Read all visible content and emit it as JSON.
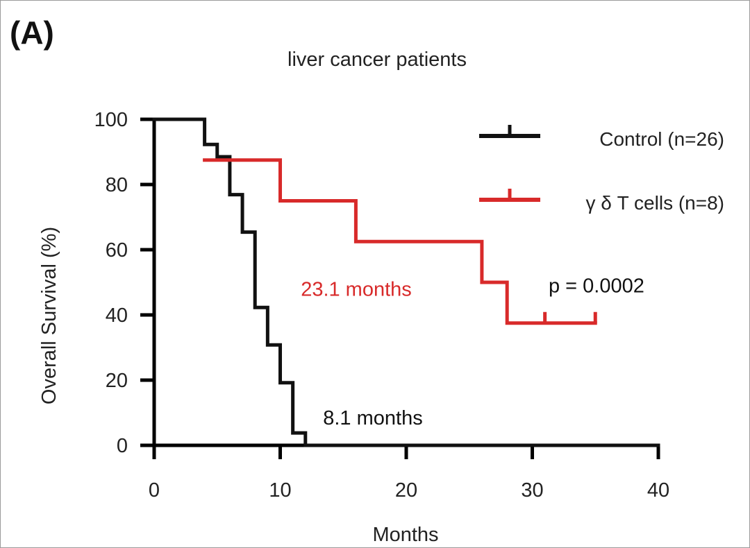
{
  "panel_label": "(A)",
  "chart_data": {
    "type": "line",
    "subtype": "kaplan-meier step",
    "title": "liver cancer patients",
    "xlabel": "Months",
    "ylabel": "Overall Survival (%)",
    "xlim": [
      0,
      40
    ],
    "ylim": [
      0,
      100
    ],
    "x_ticks": [
      0,
      10,
      20,
      30,
      40
    ],
    "y_ticks": [
      0,
      20,
      40,
      60,
      80,
      100
    ],
    "x_tick_labels": [
      "0",
      "10",
      "20",
      "30",
      "40"
    ],
    "y_tick_labels": [
      "0",
      "20",
      "40",
      "60",
      "80",
      "100"
    ],
    "grid": false,
    "legend_position": "top-right",
    "series": [
      {
        "name": "Control (n=26)",
        "color": "#111111",
        "steps": [
          [
            0,
            100
          ],
          [
            4,
            100
          ],
          [
            4,
            92.3
          ],
          [
            5,
            92.3
          ],
          [
            5,
            88.5
          ],
          [
            6,
            88.5
          ],
          [
            6,
            76.9
          ],
          [
            7,
            76.9
          ],
          [
            7,
            65.4
          ],
          [
            8,
            65.4
          ],
          [
            8,
            42.3
          ],
          [
            9,
            42.3
          ],
          [
            9,
            30.8
          ],
          [
            10,
            30.8
          ],
          [
            10,
            19.2
          ],
          [
            11,
            19.2
          ],
          [
            11,
            3.8
          ],
          [
            12,
            3.8
          ],
          [
            12,
            0
          ],
          [
            40,
            0
          ]
        ],
        "censor_marks": []
      },
      {
        "name": "γ δ T cells (n=8)",
        "color": "#d82a2a",
        "steps": [
          [
            4,
            87.5
          ],
          [
            10,
            87.5
          ],
          [
            10,
            75
          ],
          [
            16,
            75
          ],
          [
            16,
            62.5
          ],
          [
            26,
            62.5
          ],
          [
            26,
            50
          ],
          [
            28,
            50
          ],
          [
            28,
            37.5
          ],
          [
            35,
            37.5
          ]
        ],
        "censor_marks": [
          [
            31,
            37.5
          ],
          [
            35,
            37.5
          ]
        ]
      }
    ],
    "annotations": [
      {
        "text": "23.1 months",
        "x": 16,
        "y": 48,
        "color": "#d82a2a"
      },
      {
        "text": "8.1 months",
        "x": 13.3,
        "y": 8.5,
        "color": "#111111"
      },
      {
        "text": "p = 0.0002",
        "x": 35.3,
        "y": 49,
        "color": "#111111"
      }
    ]
  }
}
